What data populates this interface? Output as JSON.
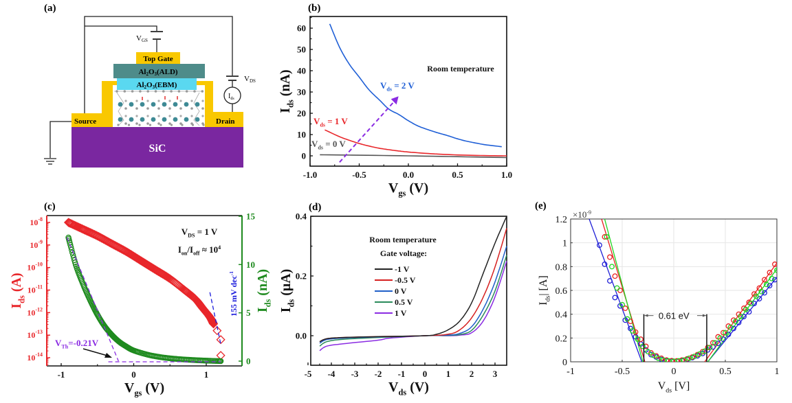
{
  "panel_labels": {
    "a": "(a)",
    "b": "(b)",
    "c": "(c)",
    "d": "(d)",
    "e": "(e)"
  },
  "diagram": {
    "top_gate": "Top Gate",
    "oxide_ald": {
      "pre": "Al",
      "s1": "2",
      "mid": "O",
      "s2": "3",
      "post": "(ALD)"
    },
    "oxide_ebm": {
      "pre": "Al",
      "s1": "2",
      "mid": "O",
      "s2": "3",
      "post": "(EBM)"
    },
    "source": "Source",
    "drain": "Drain",
    "substrate": "SiC",
    "vgs": {
      "main": "V",
      "sub": "GS"
    },
    "vds": {
      "main": "V",
      "sub": "DS"
    },
    "ids_meter": {
      "main": "I",
      "sub": "ds"
    },
    "colors": {
      "gate": "#f9c800",
      "ald": "#4e8c8a",
      "ebm": "#5ad8f0",
      "substrate": "#7a27a0",
      "contact": "#f9c800"
    }
  },
  "chart_data": [
    {
      "id": "b",
      "type": "line",
      "title": "",
      "xlabel": {
        "main": "V",
        "sub": "gs",
        "unit": " (V)"
      },
      "ylabel": {
        "main": "I",
        "sub": "ds",
        "unit": " (nA)"
      },
      "xlim": [
        -1.0,
        1.0
      ],
      "ylim": [
        -5,
        65
      ],
      "xticks": [
        "-1.0",
        "-0.5",
        "0.0",
        "0.5",
        "1.0"
      ],
      "xtick_values": [
        -1.0,
        -0.5,
        0.0,
        0.5,
        1.0
      ],
      "yticks": [
        "0",
        "10",
        "20",
        "30",
        "40",
        "50",
        "60"
      ],
      "ytick_values": [
        0,
        10,
        20,
        30,
        40,
        50,
        60
      ],
      "annotation": "Room temperature",
      "arrow": {
        "from": [
          -0.7,
          -3
        ],
        "to": [
          -0.1,
          28
        ],
        "color": "#8a2be2"
      },
      "series": [
        {
          "name": "Vds = 2 V",
          "label": {
            "main": "V",
            "sub": "ds",
            "rest": " = 2 V"
          },
          "color": "#1f5fd6",
          "x": [
            -0.8,
            -0.7,
            -0.6,
            -0.5,
            -0.4,
            -0.3,
            -0.2,
            -0.1,
            0.0,
            0.1,
            0.2,
            0.3,
            0.4,
            0.5,
            0.6,
            0.7,
            0.8,
            0.95
          ],
          "y": [
            62,
            51,
            43,
            37,
            31,
            26.5,
            22,
            19.5,
            16.5,
            14,
            12.3,
            10.8,
            9.5,
            8,
            6.8,
            5.9,
            5.1,
            4.3
          ]
        },
        {
          "name": "Vds = 1 V",
          "label": {
            "main": "V",
            "sub": "ds",
            "rest": " = 1 V"
          },
          "color": "#e8262a",
          "x": [
            -0.85,
            -0.7,
            -0.6,
            -0.5,
            -0.4,
            -0.3,
            -0.2,
            -0.1,
            0.0,
            0.2,
            0.4,
            0.6,
            0.8,
            1.0
          ],
          "y": [
            12.2,
            9,
            7.3,
            5.8,
            4.6,
            3.6,
            2.9,
            2.3,
            1.8,
            1.1,
            0.6,
            0.3,
            0.1,
            0
          ]
        },
        {
          "name": "Vds = 0 V",
          "label": {
            "main": "V",
            "sub": "ds",
            "rest": " = 0 V"
          },
          "color": "#555555",
          "x": [
            -0.9,
            -0.5,
            0.0,
            0.5,
            1.0
          ],
          "y": [
            0.5,
            0.3,
            0.0,
            -0.4,
            -0.8
          ]
        }
      ]
    },
    {
      "id": "c",
      "type": "scatter",
      "xlabel": {
        "main": "V",
        "sub": "gs",
        "unit": " (V)"
      },
      "ylabel_left": {
        "main": "I",
        "sub": "ds",
        "unit": " (A)",
        "color": "#e8262a"
      },
      "ylabel_right": {
        "main": "I",
        "sub": "ds",
        "unit": " (nA)",
        "color": "#1e8a1e"
      },
      "xlim": [
        -1.2,
        1.5
      ],
      "xticks": [
        "-1",
        "0",
        "1"
      ],
      "xtick_values": [
        -1,
        0,
        1
      ],
      "ylim_left_log10": [
        -14.3,
        -7.9
      ],
      "yticks_left": [
        {
          "base": "10",
          "exp": "-8"
        },
        {
          "base": "10",
          "exp": "-9"
        },
        {
          "base": "10",
          "exp": "-10"
        },
        {
          "base": "10",
          "exp": "-11"
        },
        {
          "base": "10",
          "exp": "-12"
        },
        {
          "base": "10",
          "exp": "-13"
        },
        {
          "base": "10",
          "exp": "-14"
        }
      ],
      "ytick_left_values": [
        -8,
        -9,
        -10,
        -11,
        -12,
        -13,
        -14
      ],
      "ylim_right": [
        -0.6,
        15
      ],
      "yticks_right": [
        "0",
        "5",
        "10",
        "15"
      ],
      "ytick_right_values": [
        0,
        5,
        10,
        15
      ],
      "annotations": {
        "vds": {
          "main": "V",
          "sub": "DS",
          "rest": " = 1 V"
        },
        "ratio": {
          "a": "I",
          "asub": "on",
          "slash": "/I",
          "bsub": "off",
          "rest": " ≈ 10",
          "sup": "4"
        },
        "ss": {
          "text": "155 mV dec",
          "sup": "-1",
          "color": "#1a1adc"
        },
        "vth": {
          "main": "V",
          "sub": "Th",
          "rest": "=-0.21V",
          "color": "#8a2be2"
        }
      },
      "series": [
        {
          "name": "Ids log (A)",
          "axis": "left",
          "marker": "diamond",
          "color": "#e8262a",
          "x": [
            -0.9,
            -0.7,
            -0.5,
            -0.3,
            -0.1,
            0.1,
            0.3,
            0.5,
            0.7,
            0.85,
            0.95,
            1.05,
            1.1,
            1.15,
            1.2,
            1.2
          ],
          "log10y": [
            -8.0,
            -8.3,
            -8.6,
            -8.95,
            -9.3,
            -9.7,
            -10.1,
            -10.5,
            -11.0,
            -11.4,
            -11.8,
            -12.2,
            -12.5,
            -12.8,
            -13.2,
            -13.9
          ]
        },
        {
          "name": "Ids linear (nA)",
          "axis": "right",
          "marker": "circle",
          "color": "#1e8a1e",
          "x": [
            -0.9,
            -0.8,
            -0.7,
            -0.6,
            -0.5,
            -0.4,
            -0.3,
            -0.2,
            -0.1,
            0.0,
            0.2,
            0.4,
            0.6,
            0.8,
            1.0,
            1.2
          ],
          "y": [
            12.8,
            10.0,
            8.0,
            6.3,
            4.8,
            3.6,
            2.7,
            2.0,
            1.5,
            1.1,
            0.65,
            0.38,
            0.22,
            0.12,
            0.05,
            0.0
          ]
        }
      ],
      "fit_lines": [
        {
          "name": "threshold fit",
          "color": "#8a2be2",
          "x": [
            -0.92,
            -0.21
          ],
          "y_right": [
            12.8,
            0
          ]
        },
        {
          "name": "baseline",
          "color": "#8a2be2",
          "x": [
            -0.35,
            1.2
          ],
          "y_right": [
            0,
            0
          ]
        },
        {
          "name": "subthreshold slope",
          "color": "#1a1adc",
          "x": [
            1.05,
            1.2
          ],
          "log10y": [
            -11.1,
            -13.4
          ]
        }
      ]
    },
    {
      "id": "d",
      "type": "line",
      "xlabel": {
        "main": "V",
        "sub": "ds",
        "unit": " (V)"
      },
      "ylabel": {
        "main": "I",
        "sub": "ds",
        "unit": " (μA)"
      },
      "xlim": [
        -5,
        3.5
      ],
      "ylim": [
        -0.1,
        0.4
      ],
      "xticks": [
        "-5",
        "-4",
        "-3",
        "-2",
        "-1",
        "0",
        "1",
        "2",
        "3"
      ],
      "xtick_values": [
        -5,
        -4,
        -3,
        -2,
        -1,
        0,
        1,
        2,
        3
      ],
      "yticks": [
        "0.0",
        "0.2",
        "0.4"
      ],
      "ytick_values": [
        0.0,
        0.2,
        0.4
      ],
      "annotation": [
        "Room temperature",
        "Gate voltage:"
      ],
      "legend_position": "upper-center",
      "series": [
        {
          "name": "-1 V",
          "color": "#222222",
          "x": [
            -4.5,
            -4.2,
            -3.5,
            -2,
            0,
            0.5,
            1,
            1.5,
            2,
            2.5,
            3,
            3.5
          ],
          "y": [
            -0.02,
            -0.01,
            -0.006,
            -0.003,
            0.0,
            0.005,
            0.02,
            0.05,
            0.11,
            0.21,
            0.31,
            0.4
          ]
        },
        {
          "name": "-0.5 V",
          "color": "#d62020",
          "x": [
            -4.5,
            -4.2,
            -3.5,
            -2,
            0,
            1,
            1.5,
            2,
            2.5,
            3,
            3.5
          ],
          "y": [
            -0.02,
            -0.01,
            -0.006,
            -0.003,
            0.0,
            0.005,
            0.02,
            0.06,
            0.13,
            0.23,
            0.36
          ]
        },
        {
          "name": "0 V",
          "color": "#1f5fc8",
          "x": [
            -4.5,
            -4.2,
            -3.5,
            -2,
            0,
            1,
            1.5,
            2,
            2.5,
            3,
            3.5
          ],
          "y": [
            -0.025,
            -0.013,
            -0.008,
            -0.004,
            0.0,
            0.002,
            0.008,
            0.03,
            0.09,
            0.18,
            0.3
          ]
        },
        {
          "name": "0.5 V",
          "color": "#2a8a5a",
          "x": [
            -4.5,
            -4.2,
            -3.5,
            -2,
            0,
            1,
            1.5,
            2,
            2.5,
            3,
            3.5
          ],
          "y": [
            -0.035,
            -0.02,
            -0.012,
            -0.006,
            0.0,
            0.001,
            0.004,
            0.018,
            0.07,
            0.15,
            0.27
          ]
        },
        {
          "name": "1 V",
          "color": "#8a2be2",
          "x": [
            -4.5,
            -4.2,
            -3.5,
            -2,
            -1.5,
            0,
            1,
            1.5,
            2,
            2.5,
            3,
            3.5
          ],
          "y": [
            -0.05,
            -0.035,
            -0.027,
            -0.015,
            -0.008,
            0.0,
            0.0,
            0.002,
            0.01,
            0.05,
            0.13,
            0.25
          ]
        }
      ]
    },
    {
      "id": "e",
      "type": "scatter",
      "xlabel": {
        "main": "V",
        "sub": "ds",
        "unit": " [V]"
      },
      "ylabel": {
        "pre": "I",
        "sub": "ds",
        "unit": "| [A]"
      },
      "multiplier": {
        "text": "×10",
        "sup": "-9"
      },
      "xlim": [
        -1,
        1
      ],
      "ylim": [
        0,
        1.2
      ],
      "xticks": [
        "-1",
        "-0.5",
        "0",
        "0.5",
        "1"
      ],
      "xtick_values": [
        -1,
        -0.5,
        0,
        0.5,
        1
      ],
      "yticks": [
        "0",
        "0.2",
        "0.4",
        "0.6",
        "0.8",
        "1",
        "1.2"
      ],
      "ytick_values": [
        0,
        0.2,
        0.4,
        0.6,
        0.8,
        1.0,
        1.2
      ],
      "grid": true,
      "annotation": {
        "text": "0.61 eV",
        "left_x": -0.29,
        "right_x": 0.32,
        "y": 0.4
      },
      "series": [
        {
          "name": "blue",
          "color": "#1f1fd6",
          "x": [
            -0.72,
            -0.67,
            -0.62,
            -0.57,
            -0.52,
            -0.47,
            -0.42,
            -0.37,
            -0.32,
            -0.27,
            -0.22,
            -0.17,
            -0.12,
            -0.07,
            -0.02,
            0.03,
            0.08,
            0.13,
            0.18,
            0.23,
            0.28,
            0.33,
            0.38,
            0.43,
            0.48,
            0.53,
            0.58,
            0.63,
            0.68,
            0.73,
            0.78,
            0.83,
            0.88,
            0.93,
            0.98
          ],
          "y": [
            0.98,
            0.82,
            0.68,
            0.54,
            0.47,
            0.35,
            0.28,
            0.21,
            0.15,
            0.1,
            0.06,
            0.04,
            0.02,
            0.01,
            0.005,
            0.005,
            0.01,
            0.02,
            0.035,
            0.05,
            0.07,
            0.1,
            0.125,
            0.155,
            0.19,
            0.23,
            0.28,
            0.33,
            0.38,
            0.42,
            0.49,
            0.53,
            0.58,
            0.64,
            0.69
          ],
          "fit": {
            "neg": [
              [
                -0.82,
                1.2
              ],
              [
                -0.31,
                0
              ]
            ],
            "pos": [
              [
                0.33,
                0
              ],
              [
                1.0,
                0.71
              ]
            ]
          }
        },
        {
          "name": "red",
          "color": "#e82020",
          "x": [
            -0.67,
            -0.62,
            -0.57,
            -0.52,
            -0.47,
            -0.42,
            -0.37,
            -0.32,
            -0.27,
            -0.22,
            -0.17,
            -0.12,
            -0.07,
            -0.02,
            0.03,
            0.08,
            0.13,
            0.18,
            0.23,
            0.28,
            0.33,
            0.38,
            0.43,
            0.48,
            0.53,
            0.58,
            0.63,
            0.68,
            0.73,
            0.78,
            0.83,
            0.88,
            0.93,
            0.98
          ],
          "y": [
            1.05,
            0.88,
            0.72,
            0.6,
            0.45,
            0.34,
            0.25,
            0.19,
            0.13,
            0.075,
            0.05,
            0.03,
            0.015,
            0.01,
            0.008,
            0.015,
            0.025,
            0.04,
            0.06,
            0.085,
            0.12,
            0.16,
            0.21,
            0.245,
            0.3,
            0.35,
            0.4,
            0.45,
            0.5,
            0.57,
            0.62,
            0.69,
            0.75,
            0.82
          ],
          "fit": {
            "neg": [
              [
                -0.7,
                1.2
              ],
              [
                -0.28,
                0
              ]
            ],
            "pos": [
              [
                0.3,
                0
              ],
              [
                1.0,
                0.83
              ]
            ]
          }
        },
        {
          "name": "green",
          "color": "#20d620",
          "x": [
            -0.65,
            -0.6,
            -0.55,
            -0.5,
            -0.45,
            -0.4,
            -0.35,
            -0.3,
            -0.25,
            -0.2,
            -0.15,
            -0.1,
            -0.05,
            0.0,
            0.05,
            0.1,
            0.15,
            0.2,
            0.25,
            0.3,
            0.35,
            0.4,
            0.45,
            0.5,
            0.55,
            0.6,
            0.65,
            0.7,
            0.75,
            0.8,
            0.85,
            0.9,
            0.95,
            1.0
          ],
          "y": [
            1.05,
            0.8,
            0.62,
            0.48,
            0.36,
            0.26,
            0.19,
            0.13,
            0.085,
            0.055,
            0.03,
            0.015,
            0.008,
            0.005,
            0.008,
            0.015,
            0.03,
            0.045,
            0.065,
            0.09,
            0.12,
            0.16,
            0.2,
            0.245,
            0.29,
            0.34,
            0.38,
            0.44,
            0.49,
            0.55,
            0.59,
            0.65,
            0.7,
            0.77
          ],
          "fit": {
            "neg": [
              [
                -0.67,
                1.2
              ],
              [
                -0.3,
                0
              ]
            ],
            "pos": [
              [
                0.33,
                0
              ],
              [
                1.0,
                0.78
              ]
            ]
          }
        }
      ]
    }
  ]
}
